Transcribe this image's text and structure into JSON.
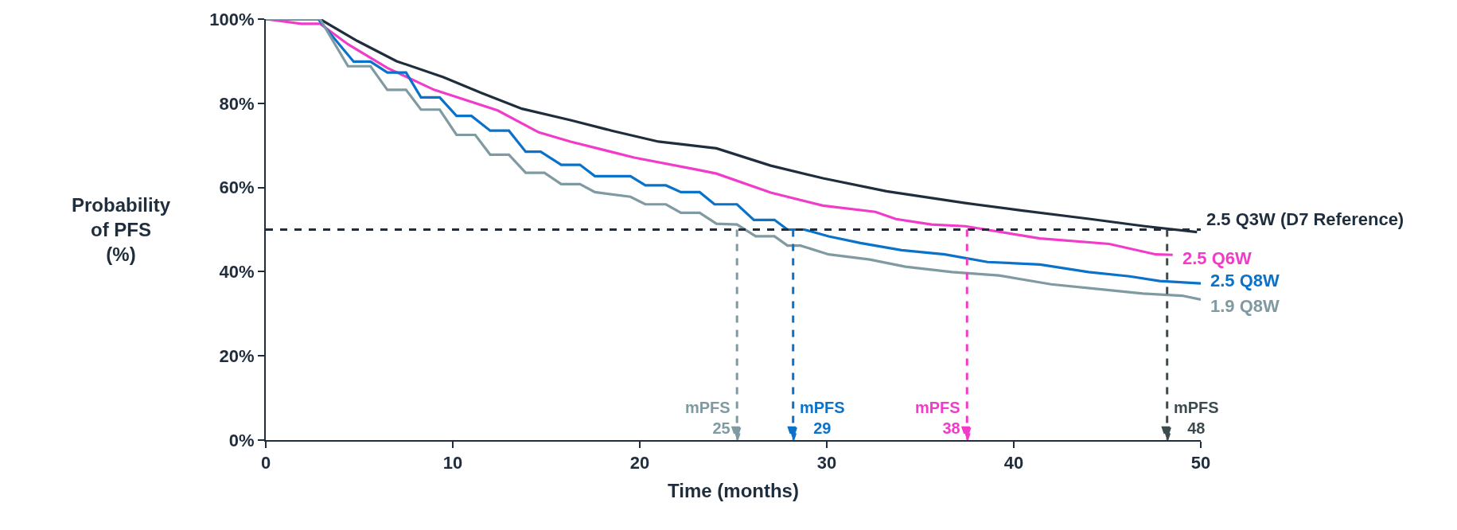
{
  "chart_data": {
    "type": "line",
    "xlabel": "Time (months)",
    "ylabel": "Probability\nof PFS\n(%)",
    "xlim": [
      0,
      50
    ],
    "xticks": [
      0,
      10,
      20,
      30,
      40,
      50
    ],
    "ylim": [
      0,
      100
    ],
    "yticks": [
      {
        "value": 0,
        "label": "0%"
      },
      {
        "value": 20,
        "label": "20%"
      },
      {
        "value": 40,
        "label": "40%"
      },
      {
        "value": 60,
        "label": "60%"
      },
      {
        "value": 80,
        "label": "80%"
      },
      {
        "value": 100,
        "label": "100%"
      }
    ],
    "legend": false,
    "marker": "none",
    "line_style": "solid",
    "series": [
      {
        "name": "2.5 Q3W (D7 Reference)",
        "color": "#1f2d3d",
        "x": [
          0,
          2.9,
          4.9,
          7,
          9.5,
          11.5,
          13.7,
          16.3,
          18.5,
          21,
          24.1,
          27,
          29.8,
          33.2,
          37.4,
          40.3,
          44.1,
          47,
          49.8
        ],
        "values": [
          100,
          100,
          94.8,
          90,
          86.2,
          82.5,
          78.7,
          76,
          73.5,
          70.9,
          69.3,
          65.2,
          62.2,
          59.1,
          56.3,
          54.6,
          52.5,
          50.8,
          49.4
        ]
      },
      {
        "name": "2.5 Q6W",
        "color": "#f03cc8",
        "x": [
          0,
          1.9,
          2.9,
          4.4,
          6.5,
          9,
          12.4,
          14.6,
          16.3,
          19.7,
          23.1,
          24.1,
          27,
          29.8,
          32.6,
          33.7,
          35.6,
          37.4,
          41.4,
          45.1,
          47.6,
          48.5
        ],
        "values": [
          100,
          98.9,
          98.9,
          94,
          88.4,
          83.2,
          78.3,
          73.1,
          70.9,
          67.1,
          64.2,
          63.3,
          58.8,
          55.7,
          54.2,
          52.5,
          51.2,
          50.8,
          47.9,
          46.6,
          44.1,
          44
        ]
      },
      {
        "name": "2.5 Q8W",
        "color": "#0a72c8",
        "x": [
          0,
          2.8,
          4.7,
          5.6,
          6.5,
          7.5,
          8.3,
          9.3,
          10.2,
          11,
          12,
          13,
          13.9,
          14.7,
          15.8,
          16.8,
          17.6,
          19.5,
          20.3,
          21.4,
          22.2,
          23.2,
          24,
          25.2,
          26.1,
          27.2,
          27.9,
          28.8,
          30.1,
          31.8,
          34,
          36.3,
          38.6,
          41.4,
          44,
          46.2,
          47.8,
          50
        ],
        "values": [
          100,
          100,
          89.9,
          89.9,
          87.3,
          87.3,
          81.4,
          81.4,
          77,
          77,
          73.5,
          73.5,
          68.5,
          68.5,
          65.4,
          65.4,
          62.7,
          62.7,
          60.5,
          60.5,
          58.9,
          58.9,
          56,
          56,
          52.3,
          52.3,
          50,
          50,
          48.4,
          46.8,
          45.1,
          44.1,
          42.3,
          41.7,
          39.9,
          38.9,
          37.8,
          37.2
        ]
      },
      {
        "name": "1.9 Q8W",
        "color": "#7f9aa0",
        "x": [
          0,
          2.9,
          4.4,
          5.6,
          6.5,
          7.5,
          8.3,
          9.3,
          10.2,
          11.2,
          12,
          13,
          13.9,
          14.9,
          15.8,
          16.8,
          17.6,
          19.5,
          20.3,
          21.4,
          22.2,
          23.2,
          24.1,
          25.2,
          26.2,
          27.2,
          27.9,
          28.6,
          30.1,
          32.3,
          34.2,
          36.7,
          39.2,
          42,
          44.9,
          46.9,
          49,
          50
        ],
        "values": [
          100,
          100,
          88.8,
          88.8,
          83.2,
          83.2,
          78.5,
          78.5,
          72.5,
          72.5,
          67.8,
          67.8,
          63.5,
          63.5,
          60.8,
          60.8,
          58.9,
          57.8,
          56,
          56,
          54,
          54,
          51.4,
          51.2,
          48.4,
          48.4,
          46.2,
          46.2,
          44.1,
          42.9,
          41.2,
          39.9,
          39.1,
          37,
          35.7,
          34.8,
          34.3,
          33.4
        ]
      }
    ],
    "ref_lines": [
      {
        "axis": "y",
        "value": 50,
        "color": "#1f2d3d",
        "line_style": "dashed"
      },
      {
        "axis": "x",
        "value": 25.2,
        "label": "mPFS\n25",
        "color": "#7f9aa0",
        "line_style": "dashed"
      },
      {
        "axis": "x",
        "value": 28.2,
        "label": "mPFS\n29",
        "color": "#0a72c8",
        "line_style": "dashed"
      },
      {
        "axis": "x",
        "value": 37.5,
        "label": "mPFS\n38",
        "color": "#f03cc8",
        "line_style": "dashed"
      },
      {
        "axis": "x",
        "value": 48.2,
        "label": "mPFS\n48",
        "color": "#3d4b4f",
        "line_style": "dashed"
      }
    ]
  }
}
